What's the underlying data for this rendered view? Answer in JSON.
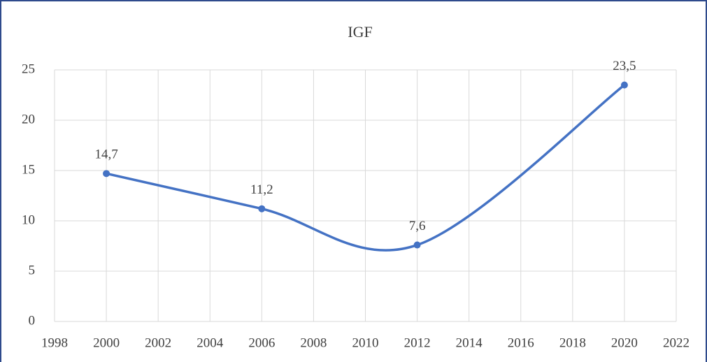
{
  "chart_data": {
    "type": "line",
    "title": "IGF",
    "x": [
      2000,
      2006,
      2012,
      2020
    ],
    "series": [
      {
        "color": "#4472c4",
        "values": [
          14.7,
          11.2,
          7.6,
          23.5
        ],
        "value_labels": [
          "14,7",
          "11,2",
          "7,6",
          "23,5"
        ]
      }
    ],
    "xlim": [
      1998,
      2022
    ],
    "xticks": [
      1998,
      2000,
      2002,
      2004,
      2006,
      2008,
      2010,
      2012,
      2014,
      2016,
      2018,
      2020,
      2022
    ],
    "ylim": [
      0,
      25
    ],
    "yticks": [
      0,
      5,
      10,
      15,
      20,
      25
    ],
    "grid": true,
    "smooth": true
  }
}
